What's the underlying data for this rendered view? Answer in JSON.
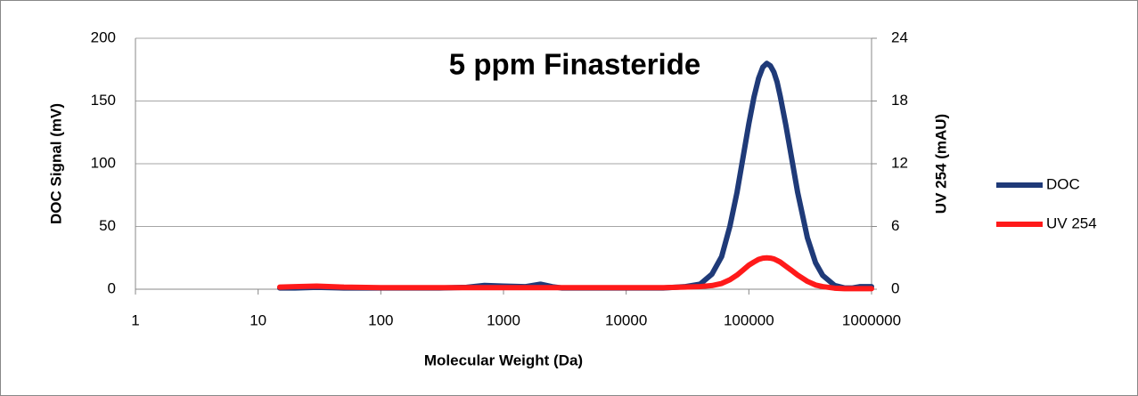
{
  "chart_data": {
    "type": "line",
    "title": "5 ppm Finasteride",
    "x_label": "Molecular Weight (Da)",
    "y_label": "DOC Signal (mV)",
    "y2_label": "UV 254 (mAU)",
    "x": [
      15,
      20,
      30,
      50,
      100,
      200,
      300,
      500,
      700,
      1000,
      1500,
      2000,
      2500,
      3000,
      5000,
      10000,
      20000,
      30000,
      40000,
      50000,
      60000,
      70000,
      80000,
      90000,
      100000,
      110000,
      120000,
      130000,
      140000,
      150000,
      160000,
      170000,
      180000,
      200000,
      220000,
      250000,
      300000,
      350000,
      400000,
      500000,
      600000,
      700000,
      800000,
      900000,
      1000000
    ],
    "series": [
      {
        "name": "DOC",
        "color": "#1f3a78",
        "axis": "y",
        "values": [
          1,
          1,
          1.5,
          1,
          1,
          1,
          1,
          1.5,
          3,
          2.5,
          2,
          4,
          2,
          1,
          1,
          1,
          1,
          2,
          4,
          12,
          26,
          50,
          77,
          106,
          132,
          153,
          168,
          177,
          180,
          178,
          173,
          165,
          154,
          131,
          108,
          77,
          41,
          21,
          11,
          3,
          1,
          1,
          2,
          2,
          2
        ]
      },
      {
        "name": "UV 254",
        "color": "#ff1a1a",
        "axis": "y2",
        "values": [
          0.2,
          0.25,
          0.3,
          0.2,
          0.15,
          0.15,
          0.15,
          0.15,
          0.15,
          0.15,
          0.15,
          0.15,
          0.15,
          0.15,
          0.15,
          0.15,
          0.15,
          0.2,
          0.25,
          0.35,
          0.55,
          0.9,
          1.35,
          1.85,
          2.3,
          2.6,
          2.85,
          2.97,
          3.0,
          2.97,
          2.9,
          2.75,
          2.6,
          2.2,
          1.85,
          1.35,
          0.75,
          0.4,
          0.25,
          0.1,
          0.05,
          0.05,
          0.05,
          0.05,
          0.05
        ]
      }
    ],
    "x_log": true,
    "xlim": [
      1,
      1000000
    ],
    "xticks": [
      1,
      10,
      100,
      1000,
      10000,
      100000,
      1000000
    ],
    "ylim": [
      0,
      200
    ],
    "yticks": [
      0,
      50,
      100,
      150,
      200
    ],
    "y2lim": [
      0,
      24
    ],
    "y2ticks": [
      0,
      6,
      12,
      18,
      24
    ],
    "grid": true,
    "legend": "right"
  }
}
